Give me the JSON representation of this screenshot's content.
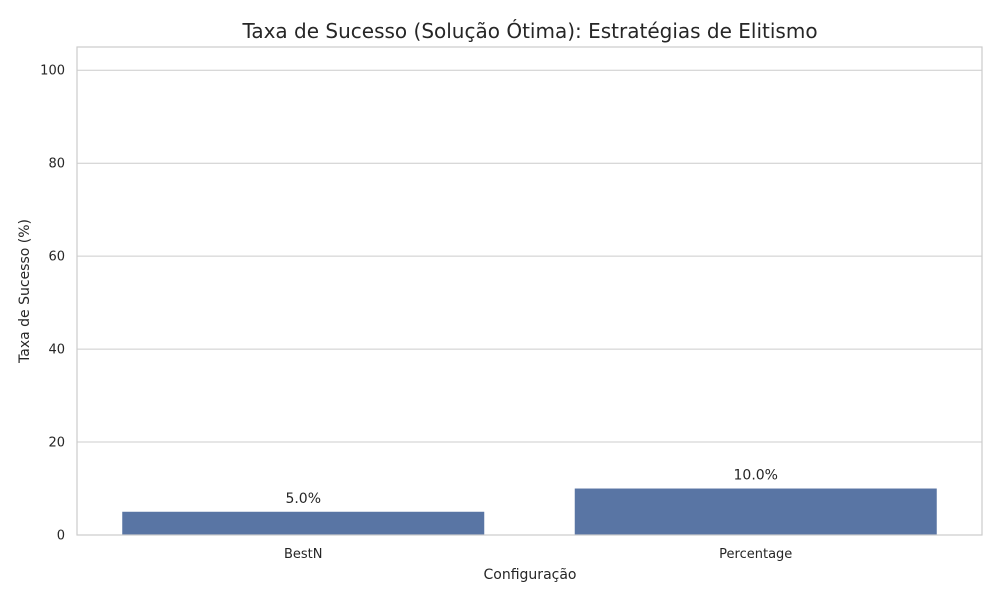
{
  "chart_data": {
    "type": "bar",
    "title": "Taxa de Sucesso (Solução Ótima): Estratégias de Elitismo",
    "xlabel": "Configuração",
    "ylabel": "Taxa de Sucesso (%)",
    "categories": [
      "BestN",
      "Percentage"
    ],
    "values": [
      5.0,
      10.0
    ],
    "data_labels": [
      "5.0%",
      "10.0%"
    ],
    "ylim": [
      0,
      105
    ],
    "yticks": [
      0,
      20,
      40,
      60,
      80,
      100
    ],
    "grid": true,
    "bar_color": "#5975a4"
  }
}
